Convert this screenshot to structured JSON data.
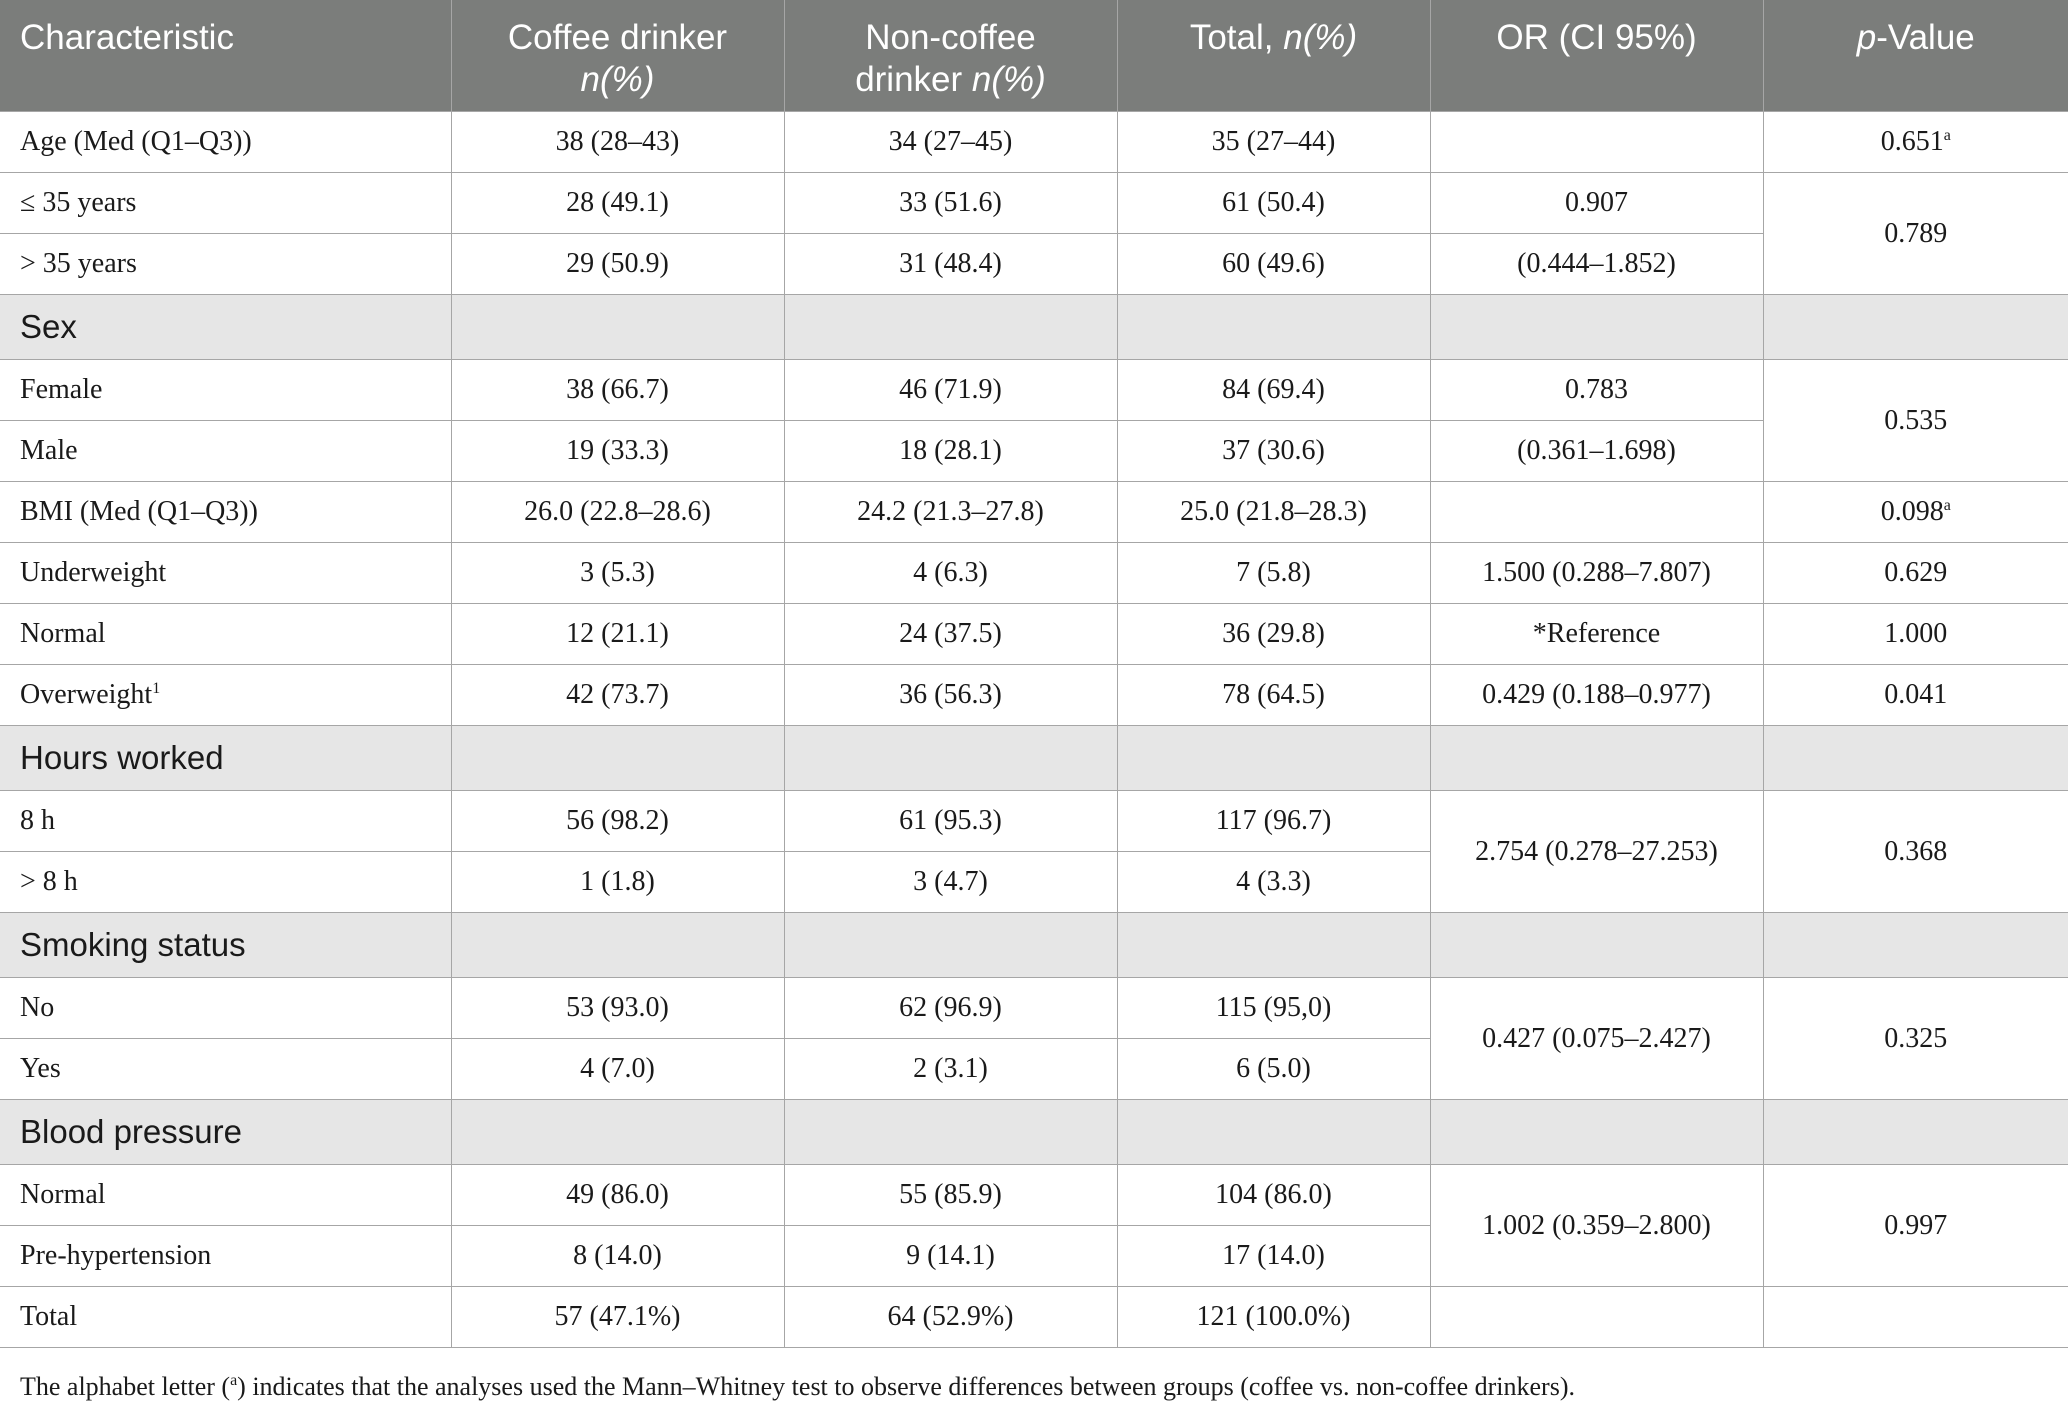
{
  "header": {
    "characteristic": "Characteristic",
    "coffee_main": "Coffee drinker",
    "coffee_n": "n(%)",
    "noncoffee_main": "Non-coffee",
    "noncoffee_sub": "drinker",
    "noncoffee_n": "n(%)",
    "total_main": "Total,",
    "total_n": "n(%)",
    "or": "OR (CI 95%)",
    "pvalue_p": "p",
    "pvalue_rest": "-Value"
  },
  "rows": {
    "age_med": {
      "label": "Age (Med (Q1–Q3))",
      "coffee": "38 (28–43)",
      "noncoffee": "34 (27–45)",
      "total": "35 (27–44)",
      "or": "",
      "p": "0.651",
      "p_sup": "a"
    },
    "age_le35": {
      "label": "≤ 35 years",
      "coffee": "28 (49.1)",
      "noncoffee": "33 (51.6)",
      "total": "61 (50.4)",
      "or": "0.907"
    },
    "age_gt35": {
      "label": "> 35 years",
      "coffee": "29 (50.9)",
      "noncoffee": "31 (48.4)",
      "total": "60 (49.6)",
      "or": "(0.444–1.852)"
    },
    "age_p": "0.789",
    "sex_section": "Sex",
    "female": {
      "label": "Female",
      "coffee": "38 (66.7)",
      "noncoffee": "46 (71.9)",
      "total": "84 (69.4)",
      "or": "0.783"
    },
    "male": {
      "label": "Male",
      "coffee": "19 (33.3)",
      "noncoffee": "18 (28.1)",
      "total": "37 (30.6)",
      "or": "(0.361–1.698)"
    },
    "sex_p": "0.535",
    "bmi_med": {
      "label": "BMI (Med (Q1–Q3))",
      "coffee": "26.0 (22.8–28.6)",
      "noncoffee": "24.2 (21.3–27.8)",
      "total": "25.0 (21.8–28.3)",
      "or": "",
      "p": "0.098",
      "p_sup": "a"
    },
    "underweight": {
      "label": "Underweight",
      "coffee": "3 (5.3)",
      "noncoffee": "4 (6.3)",
      "total": "7 (5.8)",
      "or": "1.500 (0.288–7.807)",
      "p": "0.629"
    },
    "normal_bmi": {
      "label": "Normal",
      "coffee": "12 (21.1)",
      "noncoffee": "24 (37.5)",
      "total": "36 (29.8)",
      "or": "*Reference",
      "p": "1.000"
    },
    "overweight": {
      "label": "Overweight",
      "label_sup": "1",
      "coffee": "42 (73.7)",
      "noncoffee": "36 (56.3)",
      "total": "78 (64.5)",
      "or": "0.429 (0.188–0.977)",
      "p": "0.041"
    },
    "hours_section": "Hours worked",
    "h8": {
      "label": "8 h",
      "coffee": "56 (98.2)",
      "noncoffee": "61 (95.3)",
      "total": "117 (96.7)"
    },
    "hgt8": {
      "label": "> 8 h",
      "coffee": "1 (1.8)",
      "noncoffee": "3 (4.7)",
      "total": "4 (3.3)"
    },
    "hours_or": "2.754 (0.278–27.253)",
    "hours_p": "0.368",
    "smoking_section": "Smoking status",
    "smoke_no": {
      "label": "No",
      "coffee": "53 (93.0)",
      "noncoffee": "62 (96.9)",
      "total": "115 (95,0)"
    },
    "smoke_yes": {
      "label": "Yes",
      "coffee": "4 (7.0)",
      "noncoffee": "2 (3.1)",
      "total": "6 (5.0)"
    },
    "smoking_or": "0.427 (0.075–2.427)",
    "smoking_p": "0.325",
    "bp_section": "Blood pressure",
    "bp_normal": {
      "label": "Normal",
      "coffee": "49 (86.0)",
      "noncoffee": "55 (85.9)",
      "total": "104 (86.0)"
    },
    "bp_prehyp": {
      "label": "Pre-hypertension",
      "coffee": "8 (14.0)",
      "noncoffee": "9 (14.1)",
      "total": "17 (14.0)"
    },
    "bp_or": "1.002 (0.359–2.800)",
    "bp_p": "0.997",
    "total": {
      "label": "Total",
      "coffee": "57 (47.1%)",
      "noncoffee": "64 (52.9%)",
      "total": "121 (100.0%)",
      "or": "",
      "p": ""
    }
  },
  "footnote": {
    "before": "The alphabet letter (",
    "sup": "a",
    "after": ") indicates that the analyses used the Mann–Whitney test to observe differences between groups (coffee vs. non-coffee drinkers)."
  },
  "colors": {
    "header_bg": "#7b7d7b",
    "section_bg": "#e6e6e6",
    "border": "#a6a6a6"
  }
}
